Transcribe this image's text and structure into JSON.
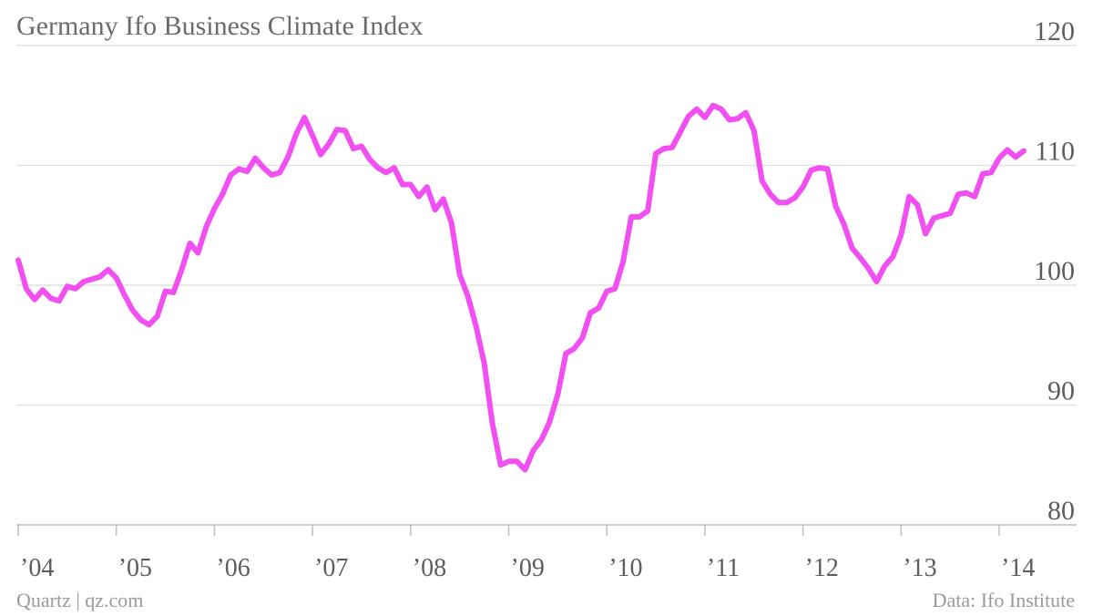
{
  "chart_data": {
    "type": "line",
    "title": "Germany Ifo Business Climate Index",
    "xlabel": "",
    "ylabel": "",
    "ylim": [
      80,
      120
    ],
    "xlim": [
      2004.0,
      2014.3
    ],
    "y_ticks": [
      80,
      90,
      100,
      110,
      120
    ],
    "x_ticks": [
      {
        "x": 2004,
        "label": "’04"
      },
      {
        "x": 2005,
        "label": "’05"
      },
      {
        "x": 2006,
        "label": "’06"
      },
      {
        "x": 2007,
        "label": "’07"
      },
      {
        "x": 2008,
        "label": "’08"
      },
      {
        "x": 2009,
        "label": "’09"
      },
      {
        "x": 2010,
        "label": "’10"
      },
      {
        "x": 2011,
        "label": "’11"
      },
      {
        "x": 2012,
        "label": "’12"
      },
      {
        "x": 2013,
        "label": "’13"
      },
      {
        "x": 2014,
        "label": "’14"
      }
    ],
    "grid": true,
    "legend": "none",
    "line_color": "#f14ff1",
    "series": [
      {
        "x": [
          2004.0,
          2004.083,
          2004.167,
          2004.25,
          2004.333,
          2004.417,
          2004.5,
          2004.583,
          2004.667,
          2004.75,
          2004.833,
          2004.917,
          2005.0,
          2005.083,
          2005.167,
          2005.25,
          2005.333,
          2005.417,
          2005.5,
          2005.583,
          2005.667,
          2005.75,
          2005.833,
          2005.917,
          2006.0,
          2006.083,
          2006.167,
          2006.25,
          2006.333,
          2006.417,
          2006.5,
          2006.583,
          2006.667,
          2006.75,
          2006.833,
          2006.917,
          2007.0,
          2007.083,
          2007.167,
          2007.25,
          2007.333,
          2007.417,
          2007.5,
          2007.583,
          2007.667,
          2007.75,
          2007.833,
          2007.917,
          2008.0,
          2008.083,
          2008.167,
          2008.25,
          2008.333,
          2008.417,
          2008.5,
          2008.583,
          2008.667,
          2008.75,
          2008.833,
          2008.917,
          2009.0,
          2009.083,
          2009.167,
          2009.25,
          2009.333,
          2009.417,
          2009.5,
          2009.583,
          2009.667,
          2009.75,
          2009.833,
          2009.917,
          2010.0,
          2010.083,
          2010.167,
          2010.25,
          2010.333,
          2010.417,
          2010.5,
          2010.583,
          2010.667,
          2010.75,
          2010.833,
          2010.917,
          2011.0,
          2011.083,
          2011.167,
          2011.25,
          2011.333,
          2011.417,
          2011.5,
          2011.583,
          2011.667,
          2011.75,
          2011.833,
          2011.917,
          2012.0,
          2012.083,
          2012.167,
          2012.25,
          2012.333,
          2012.417,
          2012.5,
          2012.583,
          2012.667,
          2012.75,
          2012.833,
          2012.917,
          2013.0,
          2013.083,
          2013.167,
          2013.25,
          2013.333,
          2013.417,
          2013.5,
          2013.583,
          2013.667,
          2013.75,
          2013.833,
          2013.917,
          2014.0,
          2014.083,
          2014.167,
          2014.25
        ],
        "values": [
          102.1,
          99.7,
          98.8,
          99.6,
          98.9,
          98.7,
          99.9,
          99.7,
          100.3,
          100.5,
          100.7,
          101.3,
          100.6,
          99.2,
          97.9,
          97.1,
          96.7,
          97.4,
          99.5,
          99.4,
          101.3,
          103.5,
          102.7,
          104.9,
          106.4,
          107.6,
          109.2,
          109.7,
          109.5,
          110.6,
          109.8,
          109.2,
          109.4,
          110.7,
          112.6,
          114.0,
          112.5,
          110.9,
          111.8,
          113.0,
          112.9,
          111.4,
          111.6,
          110.5,
          109.8,
          109.4,
          109.8,
          108.4,
          108.4,
          107.4,
          108.2,
          106.3,
          107.2,
          105.2,
          100.9,
          99.1,
          96.6,
          93.5,
          88.5,
          85.0,
          85.3,
          85.3,
          84.6,
          86.2,
          87.1,
          88.6,
          90.9,
          94.3,
          94.7,
          95.6,
          97.7,
          98.1,
          99.5,
          99.7,
          102.0,
          105.7,
          105.7,
          106.2,
          111.0,
          111.4,
          111.5,
          112.8,
          114.1,
          114.7,
          114.0,
          115.0,
          114.7,
          113.8,
          113.9,
          114.4,
          112.9,
          108.7,
          107.6,
          106.9,
          106.9,
          107.3,
          108.2,
          109.6,
          109.8,
          109.7,
          106.6,
          105.1,
          103.1,
          102.3,
          101.4,
          100.3,
          101.6,
          102.4,
          104.2,
          107.4,
          106.7,
          104.3,
          105.6,
          105.8,
          106.0,
          107.6,
          107.7,
          107.4,
          109.3,
          109.4,
          110.6,
          111.3,
          110.7,
          111.2
        ]
      }
    ]
  },
  "footer": {
    "source_left": "Quartz | qz.com",
    "source_right": "Data: Ifo Institute"
  }
}
